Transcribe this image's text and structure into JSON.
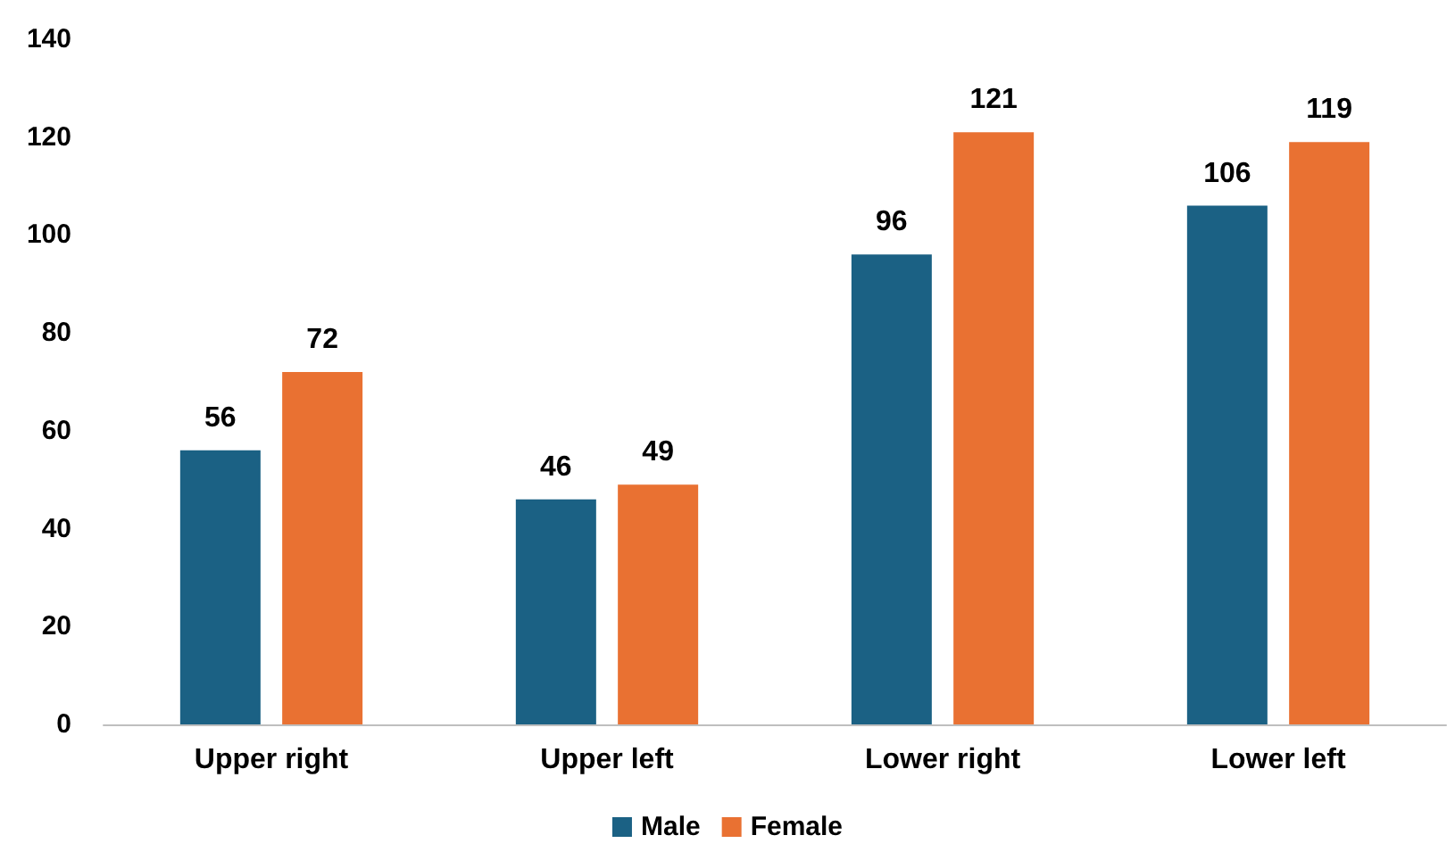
{
  "chart_data": {
    "type": "bar",
    "categories": [
      "Upper right",
      "Upper left",
      "Lower right",
      "Lower left"
    ],
    "series": [
      {
        "name": "Male",
        "color": "#1b6184",
        "values": [
          56,
          46,
          96,
          106
        ]
      },
      {
        "name": "Female",
        "color": "#e97132",
        "values": [
          72,
          49,
          121,
          119
        ]
      }
    ],
    "ylim": [
      0,
      140
    ],
    "yticks": [
      0,
      20,
      40,
      60,
      80,
      100,
      120,
      140
    ],
    "grid": false,
    "legend": "bottom",
    "data_labels": true
  }
}
